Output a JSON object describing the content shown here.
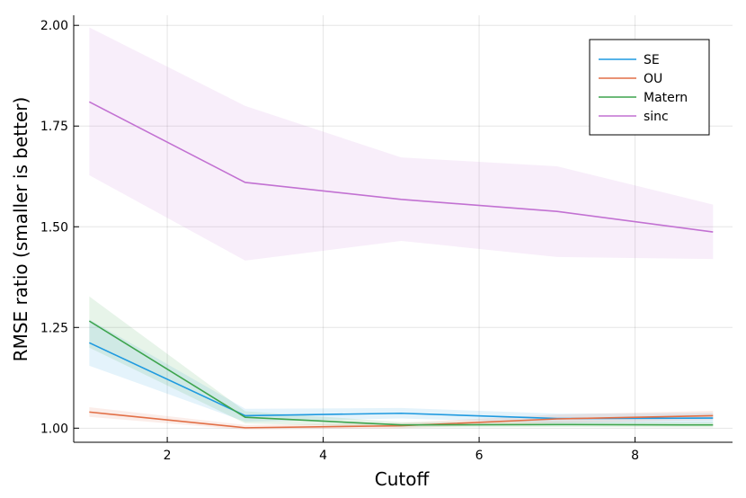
{
  "chart_data": {
    "type": "line",
    "title": "",
    "xlabel": "Cutoff",
    "ylabel": "RMSE ratio (smaller is better)",
    "xlim": [
      0.8,
      9.25
    ],
    "ylim": [
      0.965,
      2.025
    ],
    "xticks": [
      2,
      4,
      6,
      8
    ],
    "yticks": [
      1.0,
      1.25,
      1.5,
      1.75,
      2.0
    ],
    "xtick_labels": [
      "2",
      "4",
      "6",
      "8"
    ],
    "ytick_labels": [
      "1.00",
      "1.25",
      "1.50",
      "1.75",
      "2.00"
    ],
    "grid": true,
    "legend_position": "top-right",
    "x": [
      1,
      3,
      5,
      7,
      9
    ],
    "series": [
      {
        "name": "SE",
        "color": "#1f9ae0",
        "values": [
          1.212,
          1.031,
          1.037,
          1.024,
          1.025
        ],
        "lower": [
          1.155,
          1.016,
          1.024,
          1.012,
          1.012
        ],
        "upper": [
          1.27,
          1.048,
          1.05,
          1.036,
          1.038
        ]
      },
      {
        "name": "OU",
        "color": "#e26f46",
        "values": [
          1.04,
          1.001,
          1.006,
          1.023,
          1.031
        ],
        "lower": [
          1.028,
          0.996,
          1.0,
          1.013,
          1.02
        ],
        "upper": [
          1.052,
          1.008,
          1.013,
          1.034,
          1.043
        ]
      },
      {
        "name": "Matern",
        "color": "#3da44d",
        "values": [
          1.266,
          1.027,
          1.008,
          1.009,
          1.008
        ],
        "lower": [
          1.2,
          1.012,
          1.002,
          1.003,
          1.002
        ],
        "upper": [
          1.327,
          1.042,
          1.015,
          1.016,
          1.015
        ]
      },
      {
        "name": "sinc",
        "color": "#c271d2",
        "values": [
          1.81,
          1.61,
          1.568,
          1.538,
          1.487
        ],
        "lower": [
          1.628,
          1.416,
          1.465,
          1.425,
          1.42
        ],
        "upper": [
          1.995,
          1.8,
          1.672,
          1.65,
          1.555
        ]
      }
    ]
  }
}
